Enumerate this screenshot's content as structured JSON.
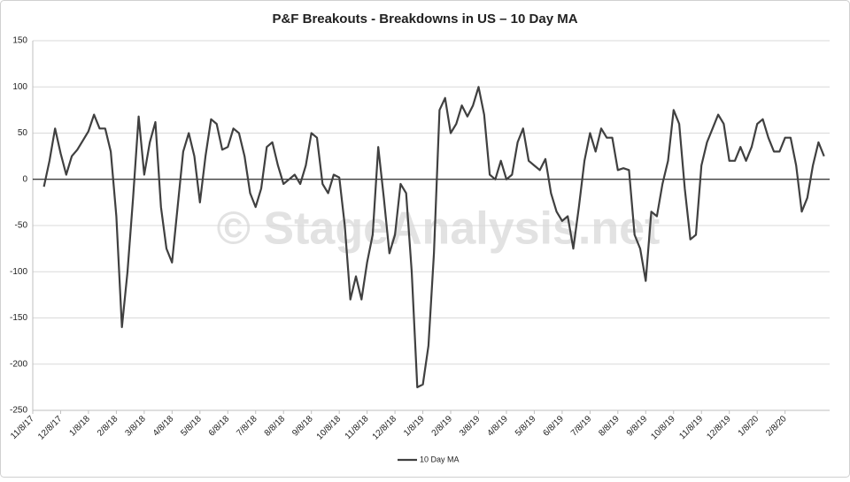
{
  "chart_data": {
    "type": "line",
    "title": "P&F Breakouts - Breakdowns in US – 10 Day MA",
    "watermark": "© StageAnalysis.net",
    "categories": [
      "11/8/17",
      null,
      null,
      null,
      null,
      "12/8/17",
      null,
      null,
      null,
      null,
      "1/8/18",
      null,
      null,
      null,
      null,
      "2/8/18",
      null,
      null,
      null,
      null,
      "3/8/18",
      null,
      null,
      null,
      null,
      "4/8/18",
      null,
      null,
      null,
      null,
      "5/8/18",
      null,
      null,
      null,
      null,
      "6/8/18",
      null,
      null,
      null,
      null,
      "7/8/18",
      null,
      null,
      null,
      null,
      "8/8/18",
      null,
      null,
      null,
      null,
      "9/8/18",
      null,
      null,
      null,
      null,
      "10/8/18",
      null,
      null,
      null,
      null,
      "11/8/18",
      null,
      null,
      null,
      null,
      "12/8/18",
      null,
      null,
      null,
      null,
      "1/8/19",
      null,
      null,
      null,
      null,
      "2/8/19",
      null,
      null,
      null,
      null,
      "3/8/19",
      null,
      null,
      null,
      null,
      "4/8/19",
      null,
      null,
      null,
      null,
      "5/8/19",
      null,
      null,
      null,
      null,
      "6/8/19",
      null,
      null,
      null,
      null,
      "7/8/19",
      null,
      null,
      null,
      null,
      "8/8/19",
      null,
      null,
      null,
      null,
      "9/8/19",
      null,
      null,
      null,
      null,
      "10/8/19",
      null,
      null,
      null,
      null,
      "11/8/19",
      null,
      null,
      null,
      null,
      "12/8/19",
      null,
      null,
      null,
      null,
      "1/8/20",
      null,
      null,
      null,
      null,
      "2/8/20",
      null,
      null,
      null,
      null,
      null,
      null,
      null
    ],
    "series": [
      {
        "name": "10 Day MA",
        "color": "#404040",
        "values": [
          null,
          null,
          -8,
          20,
          55,
          28,
          5,
          25,
          32,
          42,
          52,
          70,
          55,
          55,
          30,
          -40,
          -160,
          -100,
          -20,
          68,
          5,
          40,
          62,
          -30,
          -75,
          -90,
          -30,
          30,
          50,
          25,
          -25,
          25,
          65,
          60,
          32,
          35,
          55,
          50,
          25,
          -15,
          -30,
          -10,
          35,
          40,
          15,
          -5,
          0,
          5,
          -5,
          15,
          50,
          45,
          -5,
          -15,
          5,
          2,
          -50,
          -130,
          -105,
          -130,
          -90,
          -60,
          35,
          -20,
          -80,
          -60,
          -5,
          -15,
          -100,
          -225,
          -222,
          -180,
          -80,
          75,
          88,
          50,
          60,
          80,
          68,
          80,
          100,
          70,
          5,
          0,
          20,
          0,
          5,
          40,
          55,
          20,
          15,
          10,
          22,
          -15,
          -35,
          -45,
          -40,
          -75,
          -30,
          20,
          50,
          30,
          55,
          45,
          45,
          10,
          12,
          10,
          -60,
          -75,
          -110,
          -35,
          -40,
          -5,
          20,
          75,
          60,
          -10,
          -65,
          -60,
          15,
          40,
          55,
          70,
          60,
          20,
          20,
          35,
          20,
          35,
          60,
          65,
          45,
          30,
          30,
          45,
          45,
          15,
          -35,
          -20,
          15,
          40,
          25
        ]
      }
    ],
    "ylim": [
      -250,
      150
    ],
    "yticks": [
      -250,
      -200,
      -150,
      -100,
      -50,
      0,
      50,
      100,
      150
    ],
    "grid": true,
    "legend": "bottom"
  }
}
